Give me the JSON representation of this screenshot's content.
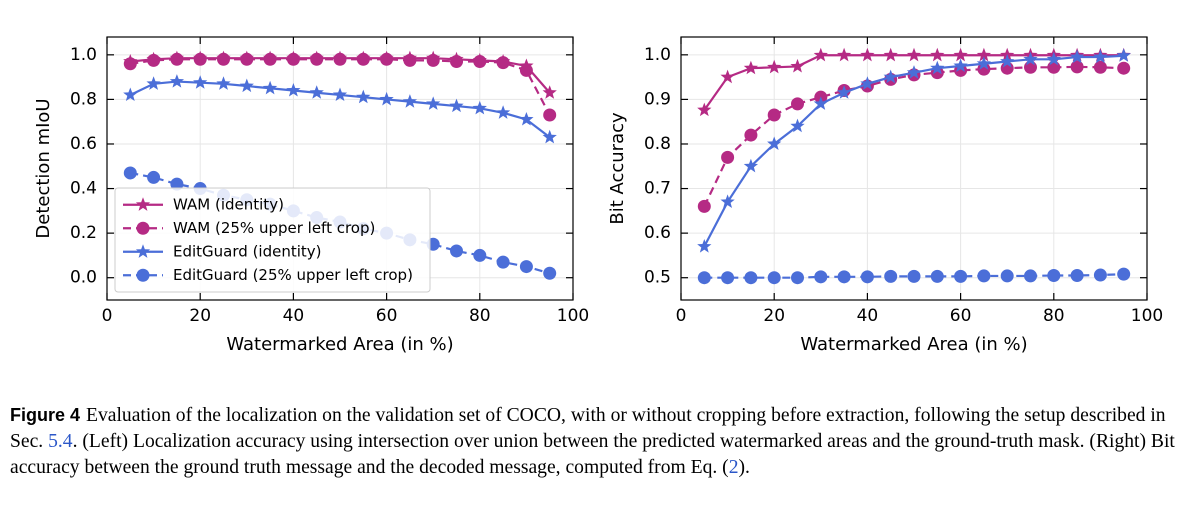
{
  "chart_data": [
    {
      "type": "line",
      "xlabel": "Watermarked Area (in %)",
      "ylabel": "Detection mIoU",
      "x": [
        5,
        10,
        15,
        20,
        25,
        30,
        35,
        40,
        45,
        50,
        55,
        60,
        65,
        70,
        75,
        80,
        85,
        90,
        95
      ],
      "xlim": [
        0,
        100
      ],
      "xticks": [
        0,
        20,
        40,
        60,
        80,
        100
      ],
      "ylim": [
        -0.1,
        1.08
      ],
      "yticks": [
        {
          "value": 0,
          "label": "0.0"
        },
        0.2,
        0.4,
        0.6,
        0.8,
        {
          "value": 1,
          "label": "1.0"
        }
      ],
      "grid": true,
      "legend": "lower left",
      "series": [
        {
          "name": "WAM (identity)",
          "color": "#b52a84",
          "marker": "star",
          "linestyle": "solid",
          "values": [
            0.97,
            0.98,
            0.985,
            0.985,
            0.985,
            0.985,
            0.985,
            0.985,
            0.985,
            0.985,
            0.985,
            0.985,
            0.985,
            0.985,
            0.98,
            0.975,
            0.97,
            0.95,
            0.83
          ]
        },
        {
          "name": "WAM (25% upper left crop)",
          "color": "#b52a84",
          "marker": "circle",
          "linestyle": "dashed",
          "values": [
            0.96,
            0.975,
            0.98,
            0.98,
            0.98,
            0.98,
            0.98,
            0.98,
            0.98,
            0.98,
            0.98,
            0.98,
            0.975,
            0.975,
            0.97,
            0.97,
            0.965,
            0.93,
            0.73
          ]
        },
        {
          "name": "EditGuard (identity)",
          "color": "#4b6ed8",
          "marker": "star",
          "linestyle": "solid",
          "values": [
            0.82,
            0.87,
            0.88,
            0.875,
            0.87,
            0.86,
            0.85,
            0.84,
            0.83,
            0.82,
            0.81,
            0.8,
            0.79,
            0.78,
            0.77,
            0.76,
            0.74,
            0.71,
            0.63
          ]
        },
        {
          "name": "EditGuard (25% upper left crop)",
          "color": "#4b6ed8",
          "marker": "circle",
          "linestyle": "dashed",
          "values": [
            0.47,
            0.45,
            0.42,
            0.4,
            0.37,
            0.35,
            0.33,
            0.3,
            0.27,
            0.25,
            0.22,
            0.2,
            0.17,
            0.15,
            0.12,
            0.1,
            0.07,
            0.05,
            0.02
          ]
        }
      ]
    },
    {
      "type": "line",
      "xlabel": "Watermarked Area (in %)",
      "ylabel": "Bit Accuracy",
      "x": [
        5,
        10,
        15,
        20,
        25,
        30,
        35,
        40,
        45,
        50,
        55,
        60,
        65,
        70,
        75,
        80,
        85,
        90,
        95
      ],
      "xlim": [
        0,
        100
      ],
      "xticks": [
        0,
        20,
        40,
        60,
        80,
        100
      ],
      "ylim": [
        0.45,
        1.04
      ],
      "yticks": [
        0.5,
        0.6,
        0.7,
        0.8,
        0.9,
        {
          "value": 1,
          "label": "1.0"
        }
      ],
      "grid": true,
      "series": [
        {
          "name": "WAM (identity)",
          "color": "#b52a84",
          "marker": "star",
          "linestyle": "solid",
          "values": [
            0.876,
            0.95,
            0.97,
            0.972,
            0.974,
            0.999,
            0.999,
            0.999,
            0.999,
            0.999,
            0.999,
            0.999,
            0.999,
            0.999,
            0.999,
            0.999,
            0.999,
            0.999,
            0.999
          ]
        },
        {
          "name": "WAM (25% upper left crop)",
          "color": "#b52a84",
          "marker": "circle",
          "linestyle": "dashed",
          "values": [
            0.66,
            0.77,
            0.82,
            0.865,
            0.89,
            0.905,
            0.92,
            0.93,
            0.945,
            0.955,
            0.96,
            0.965,
            0.968,
            0.97,
            0.972,
            0.972,
            0.973,
            0.972,
            0.97
          ]
        },
        {
          "name": "EditGuard (identity)",
          "color": "#4b6ed8",
          "marker": "star",
          "linestyle": "solid",
          "values": [
            0.57,
            0.67,
            0.75,
            0.8,
            0.84,
            0.89,
            0.915,
            0.935,
            0.95,
            0.96,
            0.97,
            0.975,
            0.98,
            0.985,
            0.99,
            0.99,
            0.995,
            0.995,
            0.998
          ]
        },
        {
          "name": "EditGuard (25% upper left crop)",
          "color": "#4b6ed8",
          "marker": "circle",
          "linestyle": "dashed",
          "values": [
            0.5,
            0.5,
            0.5,
            0.5,
            0.5,
            0.502,
            0.502,
            0.502,
            0.503,
            0.503,
            0.503,
            0.503,
            0.504,
            0.504,
            0.504,
            0.505,
            0.505,
            0.506,
            0.508
          ]
        }
      ]
    }
  ],
  "caption": {
    "label": "Figure 4",
    "text_1": "Evaluation of the localization on the validation set of COCO, with or without cropping before extraction, following the setup described in Sec. ",
    "ref_1": "5.4",
    "text_2": ". (Left) Localization accuracy using intersection over union between the predicted watermarked areas and the ground-truth mask. (Right) Bit accuracy between the ground truth message and the decoded message, computed from Eq. (",
    "ref_2": "2",
    "text_3": ")."
  }
}
